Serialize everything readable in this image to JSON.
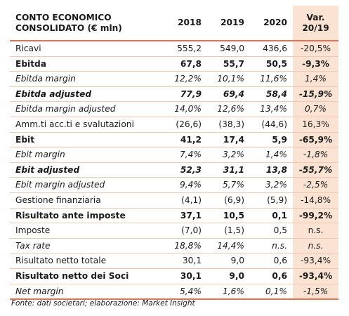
{
  "header": {
    "label_line1": "CONTO ECONOMICO",
    "label_line2": "CONSOLIDATO (€ mln)",
    "years": [
      "2018",
      "2019",
      "2020"
    ],
    "var_line1": "Var.",
    "var_line2": "20/19"
  },
  "rows": [
    {
      "label": "Ricavi",
      "v2018": "555,2",
      "v2019": "549,0",
      "v2020": "436,6",
      "var": "-20,5%",
      "style": "normal"
    },
    {
      "label": "Ebitda",
      "v2018": "67,8",
      "v2019": "55,7",
      "v2020": "50,5",
      "var": "-9,3%",
      "style": "bold"
    },
    {
      "label": "Ebitda margin",
      "v2018": "12,2%",
      "v2019": "10,1%",
      "v2020": "11,6%",
      "var": "1,4%",
      "style": "italic"
    },
    {
      "label": "Ebitda adjusted",
      "v2018": "77,9",
      "v2019": "69,4",
      "v2020": "58,4",
      "var": "-15,9%",
      "style": "bold-italic"
    },
    {
      "label": "Ebitda margin adjusted",
      "v2018": "14,0%",
      "v2019": "12,6%",
      "v2020": "13,4%",
      "var": "0,7%",
      "style": "italic"
    },
    {
      "label": "Amm.ti acc.ti e svalutazioni",
      "v2018": "(26,6)",
      "v2019": "(38,3)",
      "v2020": "(44,6)",
      "var": "16,3%",
      "style": "normal"
    },
    {
      "label": "Ebit",
      "v2018": "41,2",
      "v2019": "17,4",
      "v2020": "5,9",
      "var": "-65,9%",
      "style": "bold"
    },
    {
      "label": "Ebit margin",
      "v2018": "7,4%",
      "v2019": "3,2%",
      "v2020": "1,4%",
      "var": "-1,8%",
      "style": "italic"
    },
    {
      "label": "Ebit adjusted",
      "v2018": "52,3",
      "v2019": "31,1",
      "v2020": "13,8",
      "var": "-55,7%",
      "style": "bold-italic"
    },
    {
      "label": "Ebit margin adjusted",
      "v2018": "9,4%",
      "v2019": "5,7%",
      "v2020": "3,2%",
      "var": "-2,5%",
      "style": "italic"
    },
    {
      "label": "Gestione finanziaria",
      "v2018": "(4,1)",
      "v2019": "(6,9)",
      "v2020": "(5,9)",
      "var": "-14,8%",
      "style": "normal"
    },
    {
      "label": "Risultato ante imposte",
      "v2018": "37,1",
      "v2019": "10,5",
      "v2020": "0,1",
      "var": "-99,2%",
      "style": "bold"
    },
    {
      "label": "Imposte",
      "v2018": "(7,0)",
      "v2019": "(1,5)",
      "v2020": "0,5",
      "var": "n.s.",
      "style": "normal"
    },
    {
      "label": "Tax rate",
      "v2018": "18,8%",
      "v2019": "14,4%",
      "v2020": "n.s.",
      "var": "n.s.",
      "style": "italic"
    },
    {
      "label": "Risultato netto totale",
      "v2018": "30,1",
      "v2019": "9,0",
      "v2020": "0,6",
      "var": "-93,4%",
      "style": "normal"
    },
    {
      "label": "Risultato netto dei Soci",
      "v2018": "30,1",
      "v2019": "9,0",
      "v2020": "0,6",
      "var": "-93,4%",
      "style": "bold"
    },
    {
      "label": "Net margin",
      "v2018": "5,4%",
      "v2019": "1,6%",
      "v2020": "0,1%",
      "var": "-1,5%",
      "style": "italic"
    }
  ],
  "footer": {
    "source": "Fonte: dati societari; elaborazione: Market Insight"
  },
  "colors": {
    "accent_line": "#e57352",
    "var_column_bg": "#fbe3d3",
    "row_divider": "#f2c7b2"
  }
}
